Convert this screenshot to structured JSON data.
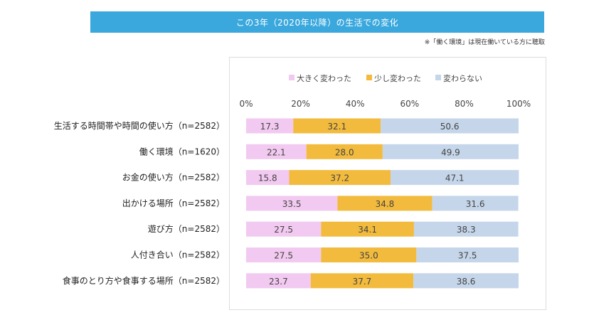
{
  "title": "この3年（2020年以降）の生活での変化",
  "note": "※「働く環境」は現在働いている方に聴取",
  "colors": {
    "title_bar": "#3aa8dd",
    "series": [
      "#f2c9f0",
      "#f2bb3d",
      "#c5d6ea"
    ]
  },
  "chart_data": {
    "type": "bar",
    "orientation": "horizontal",
    "stacked": true,
    "categories": [
      "生活する時間帯や時間の使い方（n=2582）",
      "働く環境（n=1620）",
      "お金の使い方（n=2582）",
      "出かける場所（n=2582）",
      "遊び方（n=2582）",
      "人付き合い（n=2582）",
      "食事のとり方や食事する場所（n=2582）"
    ],
    "series": [
      {
        "name": "大きく変わった",
        "values": [
          17.3,
          22.1,
          15.8,
          33.5,
          27.5,
          27.5,
          23.7
        ]
      },
      {
        "name": "少し変わった",
        "values": [
          32.1,
          28.0,
          37.2,
          34.8,
          34.1,
          35.0,
          37.7
        ]
      },
      {
        "name": "変わらない",
        "values": [
          50.6,
          49.9,
          47.1,
          31.6,
          38.3,
          37.5,
          38.6
        ]
      }
    ],
    "xlim": [
      0,
      100
    ],
    "xticks": [
      "0%",
      "20%",
      "40%",
      "60%",
      "80%",
      "100%"
    ],
    "legend_position": "top",
    "grid": false
  }
}
